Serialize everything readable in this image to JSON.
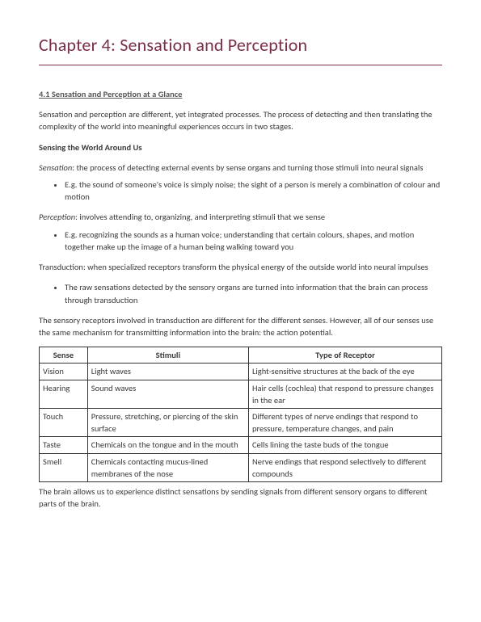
{
  "title": "Chapter 4: Sensation and Perception",
  "section_head": "4.1 Sensation and Perception at a Glance",
  "intro": "Sensation and perception are different, yet integrated processes. The process of detecting and then translating the complexity of the world into meaningful experiences occurs in two stages.",
  "subhead1": "Sensing the World Around Us",
  "sensation_term": "Sensation",
  "sensation_def": ": the process of detecting external events by sense organs and turning those stimuli into neural signals",
  "sensation_eg": "E.g. the sound of someone's voice is simply noise; the sight of a person is merely a combination of colour and motion",
  "perception_term": "Perception",
  "perception_def": ": involves attending to, organizing, and interpreting stimuli that we sense",
  "perception_eg": "E.g. recognizing the sounds as a human voice; understanding that certain colours, shapes, and motion together make up the image of a human being walking toward you",
  "transduction": "Transduction: when specialized receptors transform the physical energy of the outside world into neural impulses",
  "transduction_eg": "The raw sensations detected by the sensory organs are turned into information that the brain can process through transduction",
  "receptors_para": "The sensory receptors involved in transduction are different for the different senses. However, all of our senses use the same mechanism for transmitting information into the brain: the action potential.",
  "table": {
    "headers": {
      "sense": "Sense",
      "stimuli": "Stimuli",
      "receptor": "Type of Receptor"
    },
    "rows": [
      {
        "sense": "Vision",
        "stimuli": "Light waves",
        "receptor": "Light-sensitive structures at the back of the eye"
      },
      {
        "sense": "Hearing",
        "stimuli": "Sound waves",
        "receptor": "Hair cells (cochlea) that respond to pressure changes in the ear"
      },
      {
        "sense": "Touch",
        "stimuli": "Pressure, stretching, or piercing of the skin surface",
        "receptor": "Different types of nerve endings that respond to pressure, temperature changes, and pain"
      },
      {
        "sense": "Taste",
        "stimuli": "Chemicals on the tongue and in the mouth",
        "receptor": "Cells lining the taste buds of the tongue"
      },
      {
        "sense": "Smell",
        "stimuli": "Chemicals contacting mucus-lined membranes of the nose",
        "receptor": "Nerve endings that respond selectively to different compounds"
      }
    ]
  },
  "outro": "The brain allows us to experience distinct sensations by sending signals from different sensory organs to different parts of the brain."
}
